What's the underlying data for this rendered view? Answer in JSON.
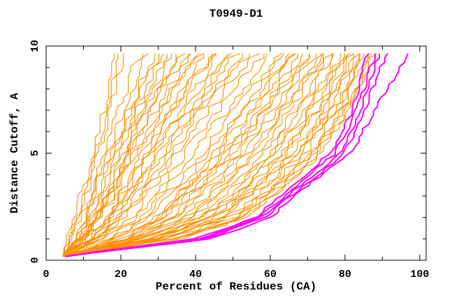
{
  "chart_data": {
    "type": "line",
    "title": "T0949-D1",
    "xlabel": "Percent of Residues (CA)",
    "ylabel": "Distance Cutoff, A",
    "xlim": [
      0,
      101.7
    ],
    "ylim": [
      0,
      10
    ],
    "x_major_ticks": [
      0,
      20,
      40,
      60,
      80,
      100
    ],
    "x_minor_ticks": [
      10,
      30,
      50,
      70,
      90
    ],
    "y_major_ticks": [
      0,
      5,
      10
    ],
    "y_minor_ticks": [
      1,
      2,
      3,
      4,
      6,
      7,
      8,
      9
    ],
    "grid": false,
    "legend": "none",
    "colors": {
      "model": "#ff8f00",
      "best_model": "#ff00ff",
      "axis": "#000000",
      "background": "#ffffff",
      "text": "#000000"
    },
    "estimation_note": "Approx. 60 orange model curves and 5 magenta highlighted curves, each monotone from ~5% at cutoff 0.2A to its top percentage at cutoff ~9.65A. Knot x-values (percent) sampled at knot_y cutoffs, estimated from pixels.",
    "knot_y": [
      0.2,
      1,
      2,
      3.5,
      5,
      7,
      9.65
    ],
    "orange_models": [
      {
        "kx": [
          5,
          6,
          8,
          10,
          12.5,
          15,
          17.5
        ]
      },
      {
        "kx": [
          5,
          6.5,
          8,
          10.5,
          12.5,
          16,
          18.5
        ]
      },
      {
        "kx": [
          5,
          6.5,
          8.5,
          11,
          13.5,
          17,
          20.5
        ]
      },
      {
        "kx": [
          5,
          7,
          9.5,
          12.5,
          15,
          19,
          25
        ]
      },
      {
        "kx": [
          5,
          7.5,
          10,
          13,
          16,
          20,
          26.5
        ]
      },
      {
        "kx": [
          5,
          8,
          11,
          14,
          17.5,
          22,
          29
        ]
      },
      {
        "kx": [
          5,
          8,
          11,
          14.5,
          18,
          22.5,
          30
        ]
      },
      {
        "kx": [
          5,
          8,
          11.5,
          15,
          18.5,
          23.5,
          31
        ]
      },
      {
        "kx": [
          5,
          8.5,
          12,
          15.5,
          19,
          24,
          32
        ]
      },
      {
        "kx": [
          5,
          9,
          12.5,
          16.5,
          20,
          25.5,
          34
        ]
      },
      {
        "kx": [
          5,
          9,
          13,
          17,
          20.5,
          26.5,
          35
        ]
      },
      {
        "kx": [
          5,
          9,
          13,
          17.5,
          21,
          27,
          36
        ]
      },
      {
        "kx": [
          5,
          9.5,
          13.5,
          17.5,
          22,
          28,
          37
        ]
      },
      {
        "kx": [
          5,
          10,
          14,
          18.5,
          23,
          29.5,
          39
        ]
      },
      {
        "kx": [
          5,
          10,
          14.5,
          19,
          23.5,
          30,
          40
        ]
      },
      {
        "kx": [
          5,
          10.5,
          15,
          19.5,
          24,
          31,
          41
        ]
      },
      {
        "kx": [
          5,
          11,
          16,
          21,
          25.5,
          32.5,
          43
        ]
      },
      {
        "kx": [
          5,
          11,
          16.5,
          21.5,
          26.5,
          33.5,
          44
        ]
      },
      {
        "kx": [
          5,
          11.5,
          17,
          22,
          27,
          34,
          45
        ]
      },
      {
        "kx": [
          5,
          11.5,
          17.5,
          23,
          28,
          35.5,
          46.5
        ]
      },
      {
        "kx": [
          5,
          12,
          18,
          24,
          29.5,
          36.5,
          48
        ]
      },
      {
        "kx": [
          5,
          12.5,
          19,
          24.5,
          30.5,
          38,
          49.5
        ]
      },
      {
        "kx": [
          5,
          13,
          19.5,
          25.5,
          31.5,
          39,
          51
        ]
      },
      {
        "kx": [
          5,
          13.5,
          20.5,
          26.5,
          32.5,
          40.5,
          52.5
        ]
      },
      {
        "kx": [
          5,
          13.5,
          21,
          27.5,
          33.5,
          41.5,
          54
        ]
      },
      {
        "kx": [
          5,
          14.5,
          22.5,
          29,
          35,
          43.5,
          56
        ]
      },
      {
        "kx": [
          5,
          15.5,
          24,
          31,
          37,
          46,
          58
        ]
      },
      {
        "kx": [
          5,
          16.5,
          25.5,
          32.5,
          39.5,
          48,
          60
        ]
      },
      {
        "kx": [
          5,
          17.5,
          27,
          34.5,
          41.5,
          50,
          62
        ]
      },
      {
        "kx": [
          5,
          18.5,
          28,
          36,
          43,
          52,
          63.5
        ]
      },
      {
        "kx": [
          5,
          19.5,
          29,
          37.5,
          44.5,
          53.5,
          65
        ]
      },
      {
        "kx": [
          5,
          20,
          30,
          38,
          45.5,
          54.5,
          66
        ]
      },
      {
        "kx": [
          5,
          20.5,
          30.5,
          39,
          47,
          55.5,
          67
        ]
      },
      {
        "kx": [
          5,
          21,
          31.5,
          40,
          48,
          57,
          68
        ]
      },
      {
        "kx": [
          5,
          21.5,
          32,
          41,
          49,
          58,
          69
        ]
      },
      {
        "kx": [
          5,
          22,
          33,
          42,
          50,
          59,
          70
        ]
      },
      {
        "kx": [
          5,
          22.5,
          34,
          43.5,
          51.5,
          60.5,
          71
        ]
      },
      {
        "kx": [
          5,
          23.5,
          35,
          44.5,
          52.5,
          61.5,
          72
        ]
      },
      {
        "kx": [
          5,
          24,
          36.5,
          46,
          54,
          63,
          73
        ]
      },
      {
        "kx": [
          5,
          24.5,
          37.5,
          47,
          55.5,
          64,
          74
        ]
      },
      {
        "kx": [
          5,
          25.5,
          38.5,
          48,
          56.5,
          65,
          75
        ]
      },
      {
        "kx": [
          5,
          26,
          39.5,
          49.5,
          58,
          66.5,
          76
        ]
      },
      {
        "kx": [
          5,
          26.5,
          40.5,
          51,
          59.5,
          68,
          77
        ]
      },
      {
        "kx": [
          5,
          27.5,
          41.5,
          52,
          60.5,
          69,
          78
        ]
      },
      {
        "kx": [
          5,
          28,
          42.5,
          53,
          61.5,
          70,
          78.8
        ]
      },
      {
        "kx": [
          5,
          28.5,
          43.5,
          54,
          62.5,
          71,
          79.5
        ]
      },
      {
        "kx": [
          5,
          29,
          44,
          55,
          63.5,
          72,
          80.3
        ]
      },
      {
        "kx": [
          5,
          29.5,
          45,
          56,
          64.5,
          73,
          81
        ]
      },
      {
        "kx": [
          5,
          30,
          45.5,
          57,
          66,
          74,
          81.8
        ]
      },
      {
        "kx": [
          5,
          30.5,
          46.5,
          57.5,
          66.5,
          74.5,
          82.5
        ]
      },
      {
        "kx": [
          5,
          31,
          47.5,
          58.5,
          67.5,
          75.5,
          83.2
        ]
      },
      {
        "kx": [
          5,
          32,
          48.5,
          59.5,
          68.5,
          76.5,
          84
        ]
      },
      {
        "kx": [
          5,
          32.5,
          49.5,
          60.5,
          69.5,
          77,
          84.7
        ]
      },
      {
        "kx": [
          5,
          33.5,
          50.5,
          61.5,
          70.5,
          78,
          85.4
        ]
      },
      {
        "kx": [
          5,
          34,
          51.5,
          62,
          71.5,
          78.5,
          86
        ]
      },
      {
        "kx": [
          5,
          34.5,
          52,
          63,
          72,
          79.5,
          86.6
        ]
      },
      {
        "kx": [
          5,
          35,
          53,
          64,
          73,
          80,
          87.2
        ]
      },
      {
        "kx": [
          5,
          36,
          53.5,
          64.5,
          73.5,
          81,
          87.8
        ]
      }
    ],
    "magenta_models": [
      {
        "kx": [
          5,
          40,
          56,
          66,
          76,
          82,
          86
        ]
      },
      {
        "kx": [
          5,
          41,
          57,
          67,
          77.5,
          83,
          88
        ]
      },
      {
        "kx": [
          5,
          42,
          57.5,
          68,
          79,
          84,
          89
        ]
      },
      {
        "kx": [
          5,
          43,
          58.5,
          69,
          80,
          85,
          91
        ]
      },
      {
        "kx": [
          5,
          44,
          60,
          70,
          81.5,
          88,
          97
        ]
      }
    ]
  }
}
